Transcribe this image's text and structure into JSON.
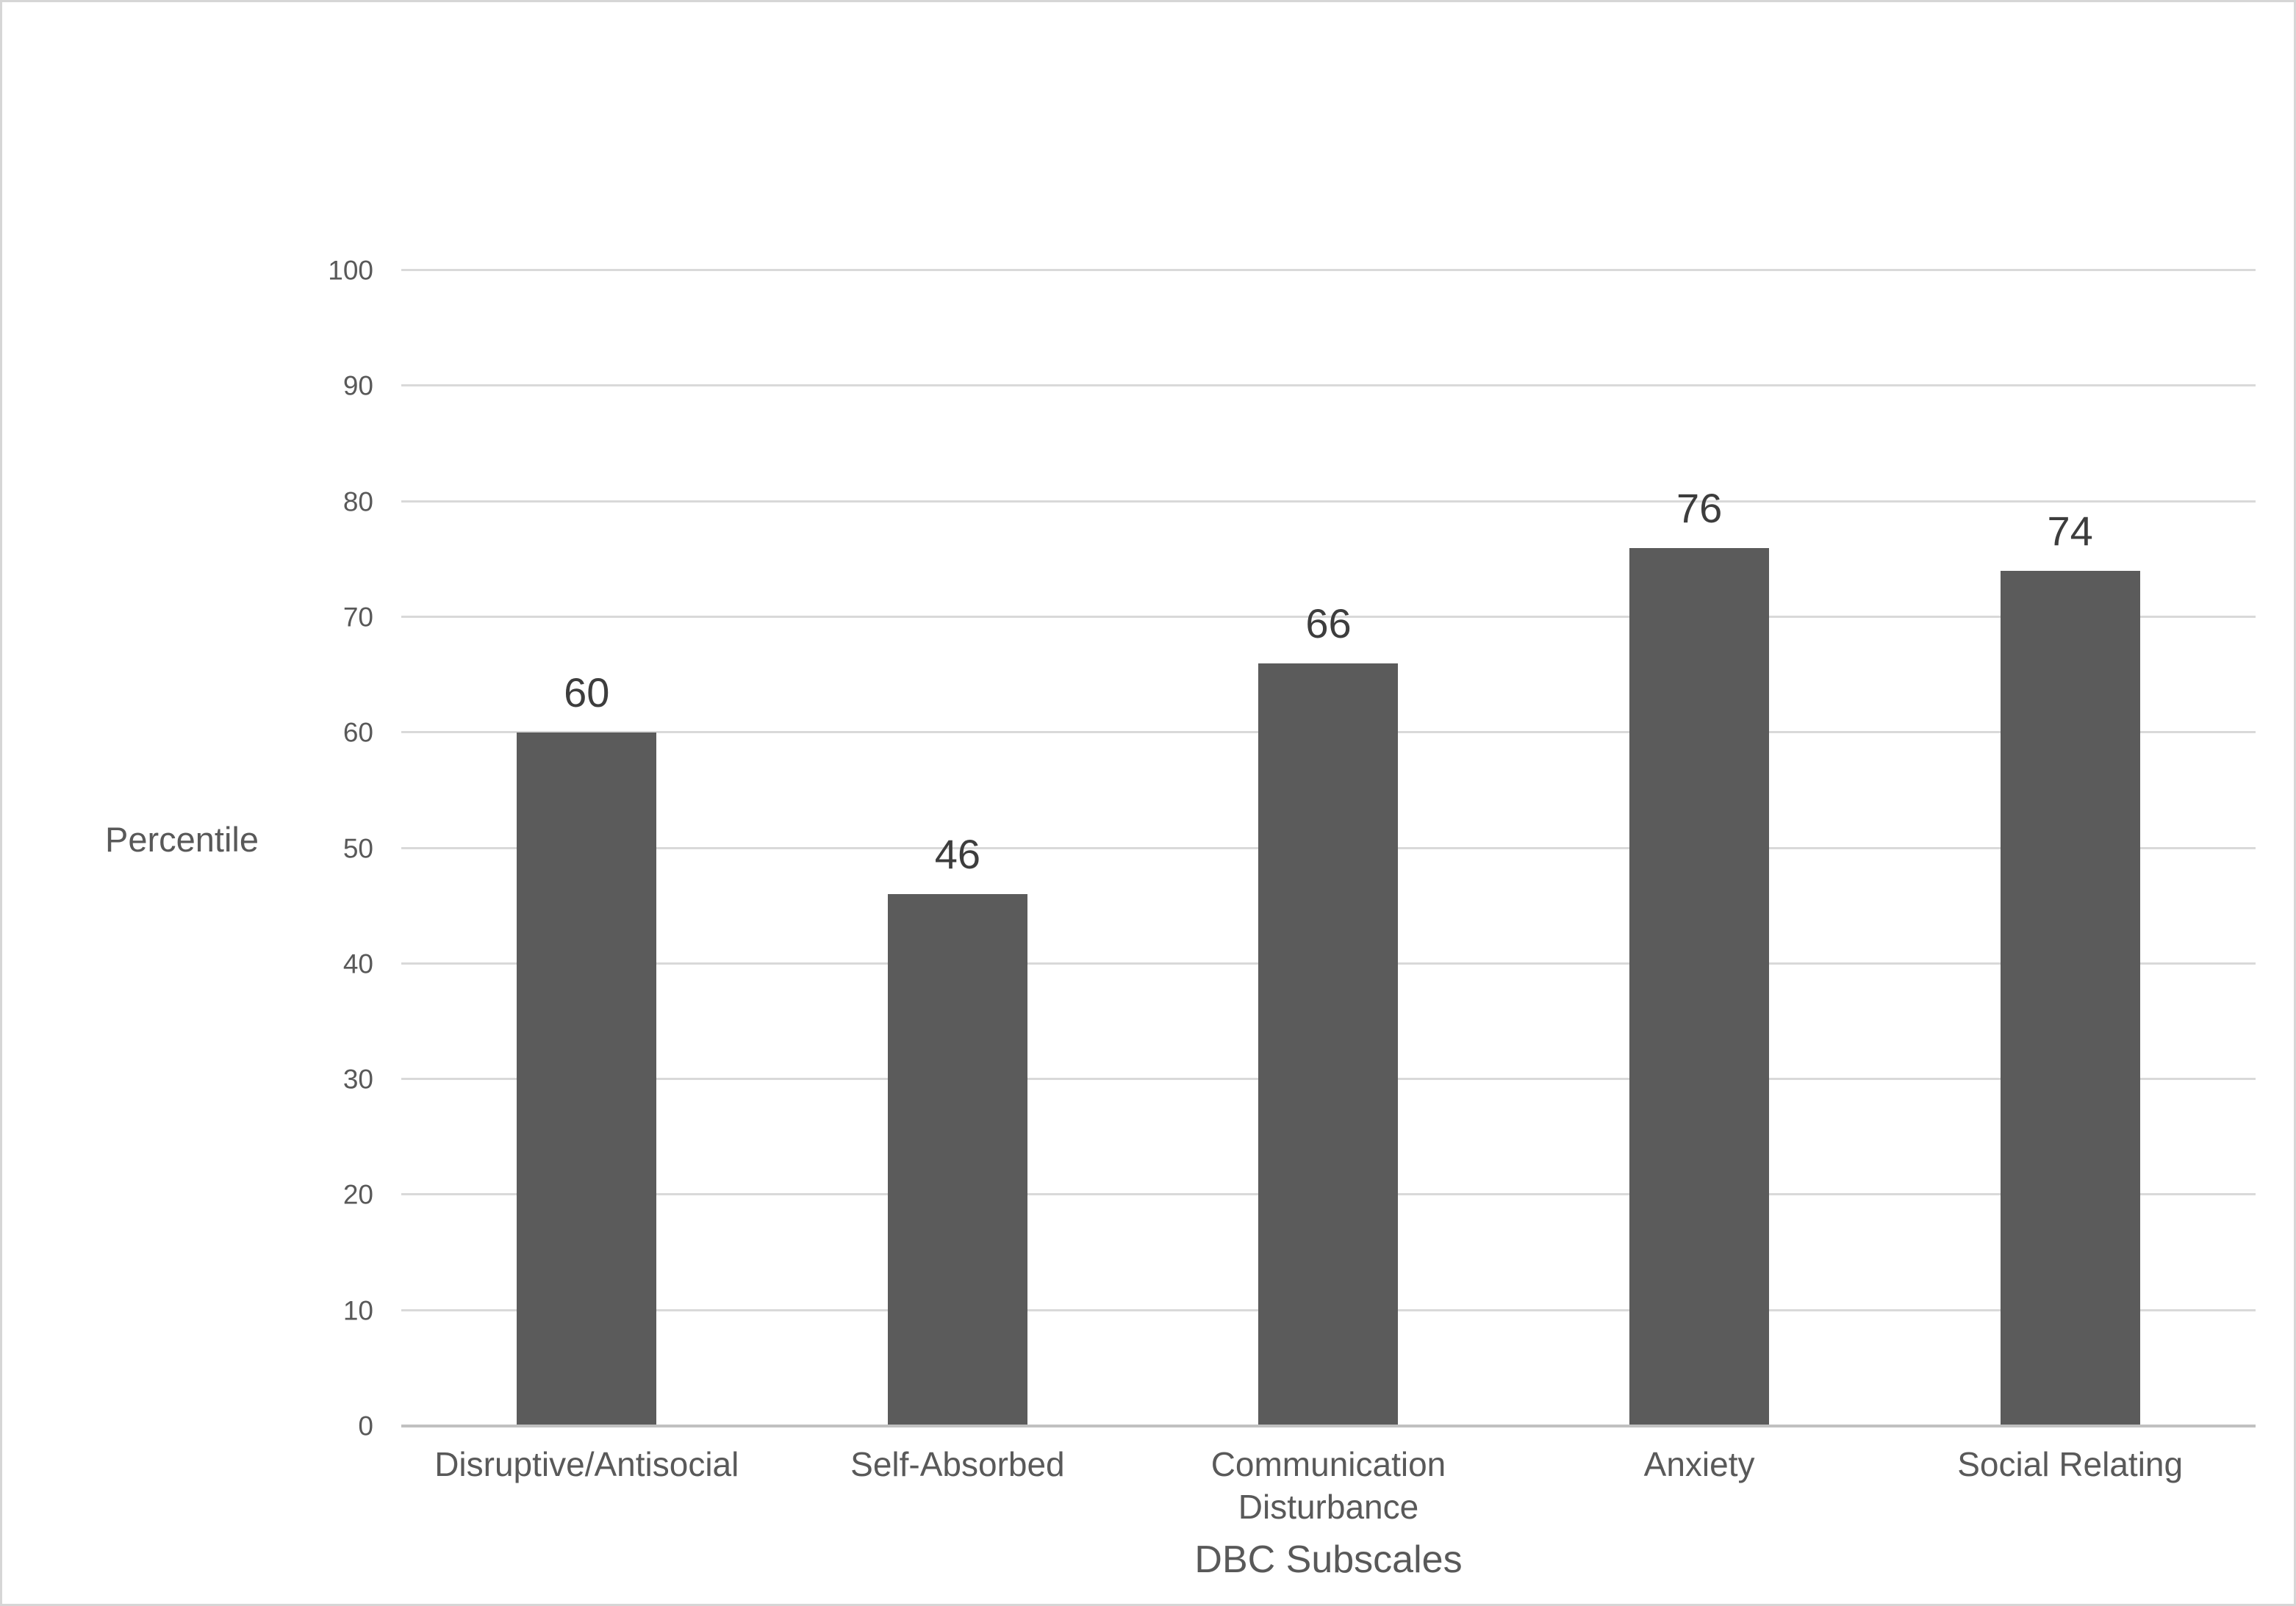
{
  "chart_data": {
    "type": "bar",
    "categories": [
      "Disruptive/Antisocial",
      "Self-Absorbed",
      "Communication Disturbance",
      "Anxiety",
      "Social Relating"
    ],
    "values": [
      60,
      46,
      66,
      76,
      74
    ],
    "xlabel": "DBC Subscales",
    "ylabel": "Percentile",
    "ylim": [
      0,
      100
    ],
    "yticks": [
      0,
      10,
      20,
      30,
      40,
      50,
      60,
      70,
      80,
      90,
      100
    ],
    "grid": true,
    "legend": "none",
    "colors": {
      "bar": "#5b5b5b",
      "gridline": "#d9d9d9",
      "axis_line": "#c0c0c0",
      "tick_text": "#595959",
      "data_label_text": "#3d3d3d",
      "border": "#d6d6d6",
      "background": "#ffffff"
    }
  }
}
